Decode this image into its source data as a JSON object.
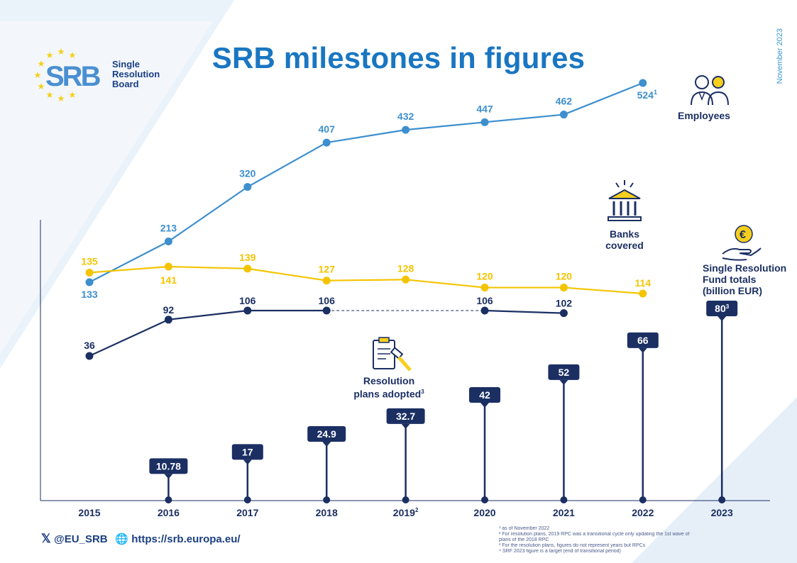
{
  "title": "SRB milestones in figures",
  "date_label": "November 2023",
  "logo": {
    "abbr": "SRB",
    "line1": "Single",
    "line2": "Resolution",
    "line3": "Board"
  },
  "labels": {
    "employees": "Employees",
    "banks_1": "Banks",
    "banks_2": "covered",
    "srf_1": "Single Resolution",
    "srf_2": "Fund totals",
    "srf_3": "(billion EUR)",
    "plans_1": "Resolution",
    "plans_2": "plans adopted",
    "plans_sup": "3"
  },
  "footer": {
    "twitter": "@EU_SRB",
    "website": "https://srb.europa.eu/"
  },
  "footnotes": [
    "¹ as of November 2022",
    "² For resolution plans, 2019 RPC was a transitional cycle only updating the 1st wave of",
    "plans of the 2018 RPC",
    "³ For the resolution plans, figures do not represent years but RPCs",
    "⁴ SRF 2023 figure is a target (end of transitional period)"
  ],
  "colors": {
    "employees": "#3d8fce",
    "banks": "#f5cf1c",
    "plans": "#1b2f63",
    "srf": "#1b2f63",
    "title": "#1976c2"
  },
  "chart_data": {
    "type": "line",
    "x": [
      "2015",
      "2016",
      "2017",
      "2018",
      "2019",
      "2020",
      "2021",
      "2022",
      "2023"
    ],
    "x_superscripts": {
      "2019": "2"
    },
    "series": [
      {
        "name": "Employees",
        "values": [
          133,
          213,
          320,
          407,
          432,
          447,
          462,
          524,
          null
        ],
        "labels": [
          "133",
          "213",
          "320",
          "407",
          "432",
          "447",
          "462",
          "524",
          null
        ],
        "superscripts": {
          "2022": "1"
        }
      },
      {
        "name": "Banks covered",
        "values": [
          135,
          141,
          139,
          127,
          128,
          120,
          120,
          114,
          null
        ],
        "labels": [
          "135",
          "141",
          "139",
          "127",
          "128",
          "120",
          "120",
          "114",
          null
        ]
      },
      {
        "name": "Resolution plans adopted",
        "values": [
          36,
          92,
          106,
          106,
          null,
          106,
          102,
          null,
          null
        ],
        "labels": [
          "36",
          "92",
          "106",
          "106",
          null,
          "106",
          "102",
          null,
          null
        ],
        "dashed_gap": [
          "2018",
          "2020"
        ]
      },
      {
        "name": "Single Resolution Fund totals (billion EUR)",
        "type": "lollipop",
        "values": [
          null,
          10.78,
          17,
          24.9,
          32.7,
          42,
          52,
          66,
          80
        ],
        "labels": [
          null,
          "10.78",
          "17",
          "24.9",
          "32.7",
          "42",
          "52",
          "66",
          "80"
        ],
        "superscripts": {
          "2023": "3"
        }
      }
    ]
  }
}
